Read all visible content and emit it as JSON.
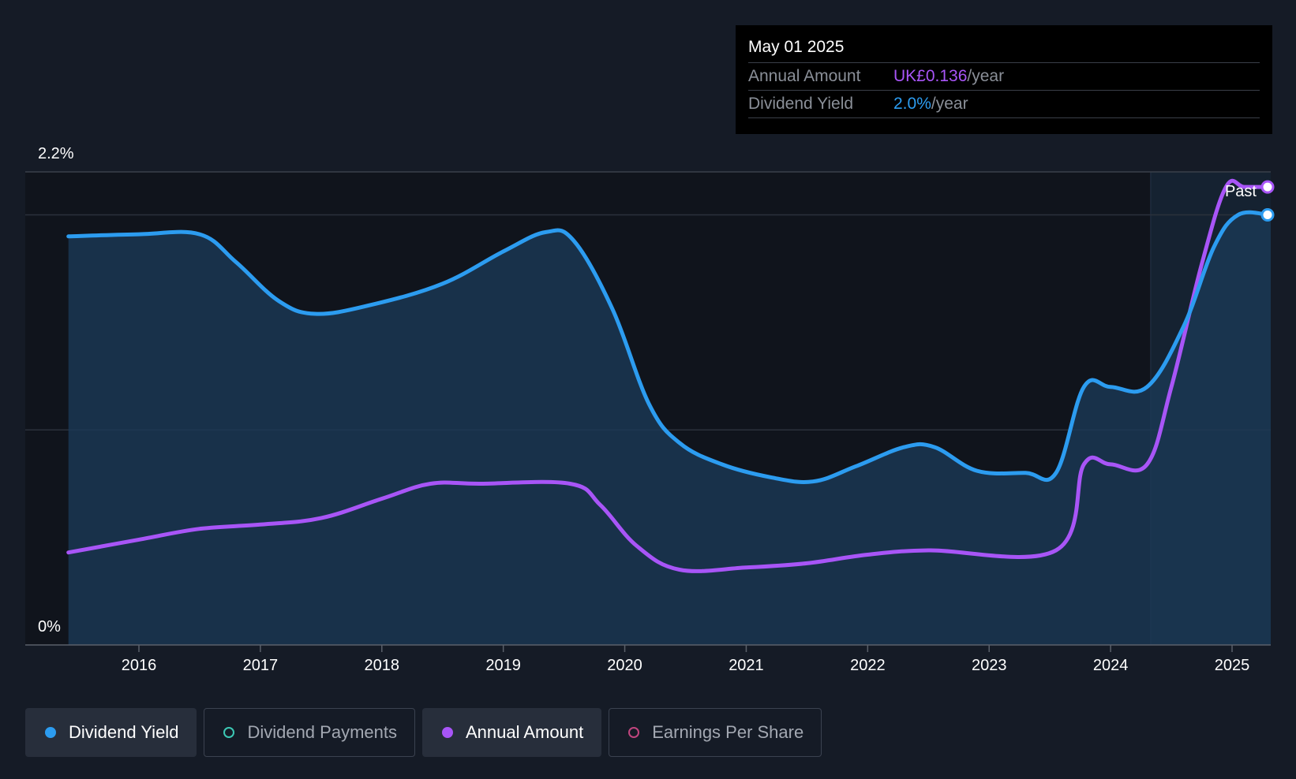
{
  "tooltip": {
    "date": "May 01 2025",
    "rows": [
      {
        "label": "Annual Amount",
        "value": "UK£0.136",
        "unit": "/year",
        "color": "#a855f7"
      },
      {
        "label": "Dividend Yield",
        "value": "2.0%",
        "unit": "/year",
        "color": "#2c9cf0"
      }
    ]
  },
  "past_label": "Past",
  "legend": [
    {
      "label": "Dividend Yield",
      "color": "#2c9cf0",
      "active": true,
      "filled": true
    },
    {
      "label": "Dividend Payments",
      "color": "#3cc8b4",
      "active": false,
      "filled": false
    },
    {
      "label": "Annual Amount",
      "color": "#a855f7",
      "active": true,
      "filled": true
    },
    {
      "label": "Earnings Per Share",
      "color": "#c0457e",
      "active": false,
      "filled": false
    }
  ],
  "chart_data": {
    "type": "area",
    "y_tick_labels": [
      "0%",
      "2.2%"
    ],
    "ylim": [
      0,
      2.2
    ],
    "xlim": [
      2015.0,
      2025.33
    ],
    "x_ticks": [
      2016,
      2017,
      2018,
      2019,
      2020,
      2021,
      2022,
      2023,
      2024,
      2025
    ],
    "x_tick_labels": [
      "2016",
      "2017",
      "2018",
      "2019",
      "2020",
      "2021",
      "2022",
      "2023",
      "2024",
      "2025"
    ],
    "past_region_start": 2024.33,
    "grid": true,
    "legend_position": "bottom",
    "series": [
      {
        "key": "dividend_yield",
        "name": "Dividend Yield",
        "color": "#2c9cf0",
        "area": true,
        "points": [
          [
            2015.42,
            1.9
          ],
          [
            2016.0,
            1.91
          ],
          [
            2016.5,
            1.91
          ],
          [
            2016.8,
            1.78
          ],
          [
            2017.15,
            1.6
          ],
          [
            2017.45,
            1.54
          ],
          [
            2017.9,
            1.58
          ],
          [
            2018.5,
            1.68
          ],
          [
            2019.0,
            1.83
          ],
          [
            2019.35,
            1.92
          ],
          [
            2019.58,
            1.88
          ],
          [
            2019.9,
            1.56
          ],
          [
            2020.2,
            1.12
          ],
          [
            2020.45,
            0.94
          ],
          [
            2020.8,
            0.84
          ],
          [
            2021.2,
            0.78
          ],
          [
            2021.55,
            0.76
          ],
          [
            2021.9,
            0.83
          ],
          [
            2022.3,
            0.92
          ],
          [
            2022.55,
            0.92
          ],
          [
            2022.9,
            0.81
          ],
          [
            2023.3,
            0.8
          ],
          [
            2023.55,
            0.8
          ],
          [
            2023.78,
            1.2
          ],
          [
            2024.0,
            1.2
          ],
          [
            2024.3,
            1.2
          ],
          [
            2024.6,
            1.48
          ],
          [
            2024.85,
            1.85
          ],
          [
            2025.05,
            2.0
          ],
          [
            2025.3,
            2.0
          ]
        ]
      },
      {
        "key": "annual_amount",
        "name": "Annual Amount",
        "color": "#a855f7",
        "area": false,
        "points": [
          [
            2015.42,
            0.43
          ],
          [
            2016.0,
            0.49
          ],
          [
            2016.5,
            0.54
          ],
          [
            2017.0,
            0.56
          ],
          [
            2017.5,
            0.59
          ],
          [
            2018.0,
            0.68
          ],
          [
            2018.4,
            0.75
          ],
          [
            2018.8,
            0.75
          ],
          [
            2019.55,
            0.75
          ],
          [
            2019.8,
            0.65
          ],
          [
            2020.1,
            0.46
          ],
          [
            2020.45,
            0.35
          ],
          [
            2021.0,
            0.36
          ],
          [
            2021.5,
            0.38
          ],
          [
            2022.0,
            0.42
          ],
          [
            2022.5,
            0.44
          ],
          [
            2023.55,
            0.44
          ],
          [
            2023.78,
            0.84
          ],
          [
            2024.0,
            0.84
          ],
          [
            2024.3,
            0.84
          ],
          [
            2024.5,
            1.2
          ],
          [
            2024.75,
            1.77
          ],
          [
            2024.95,
            2.13
          ],
          [
            2025.1,
            2.13
          ],
          [
            2025.3,
            2.13
          ]
        ]
      }
    ]
  }
}
